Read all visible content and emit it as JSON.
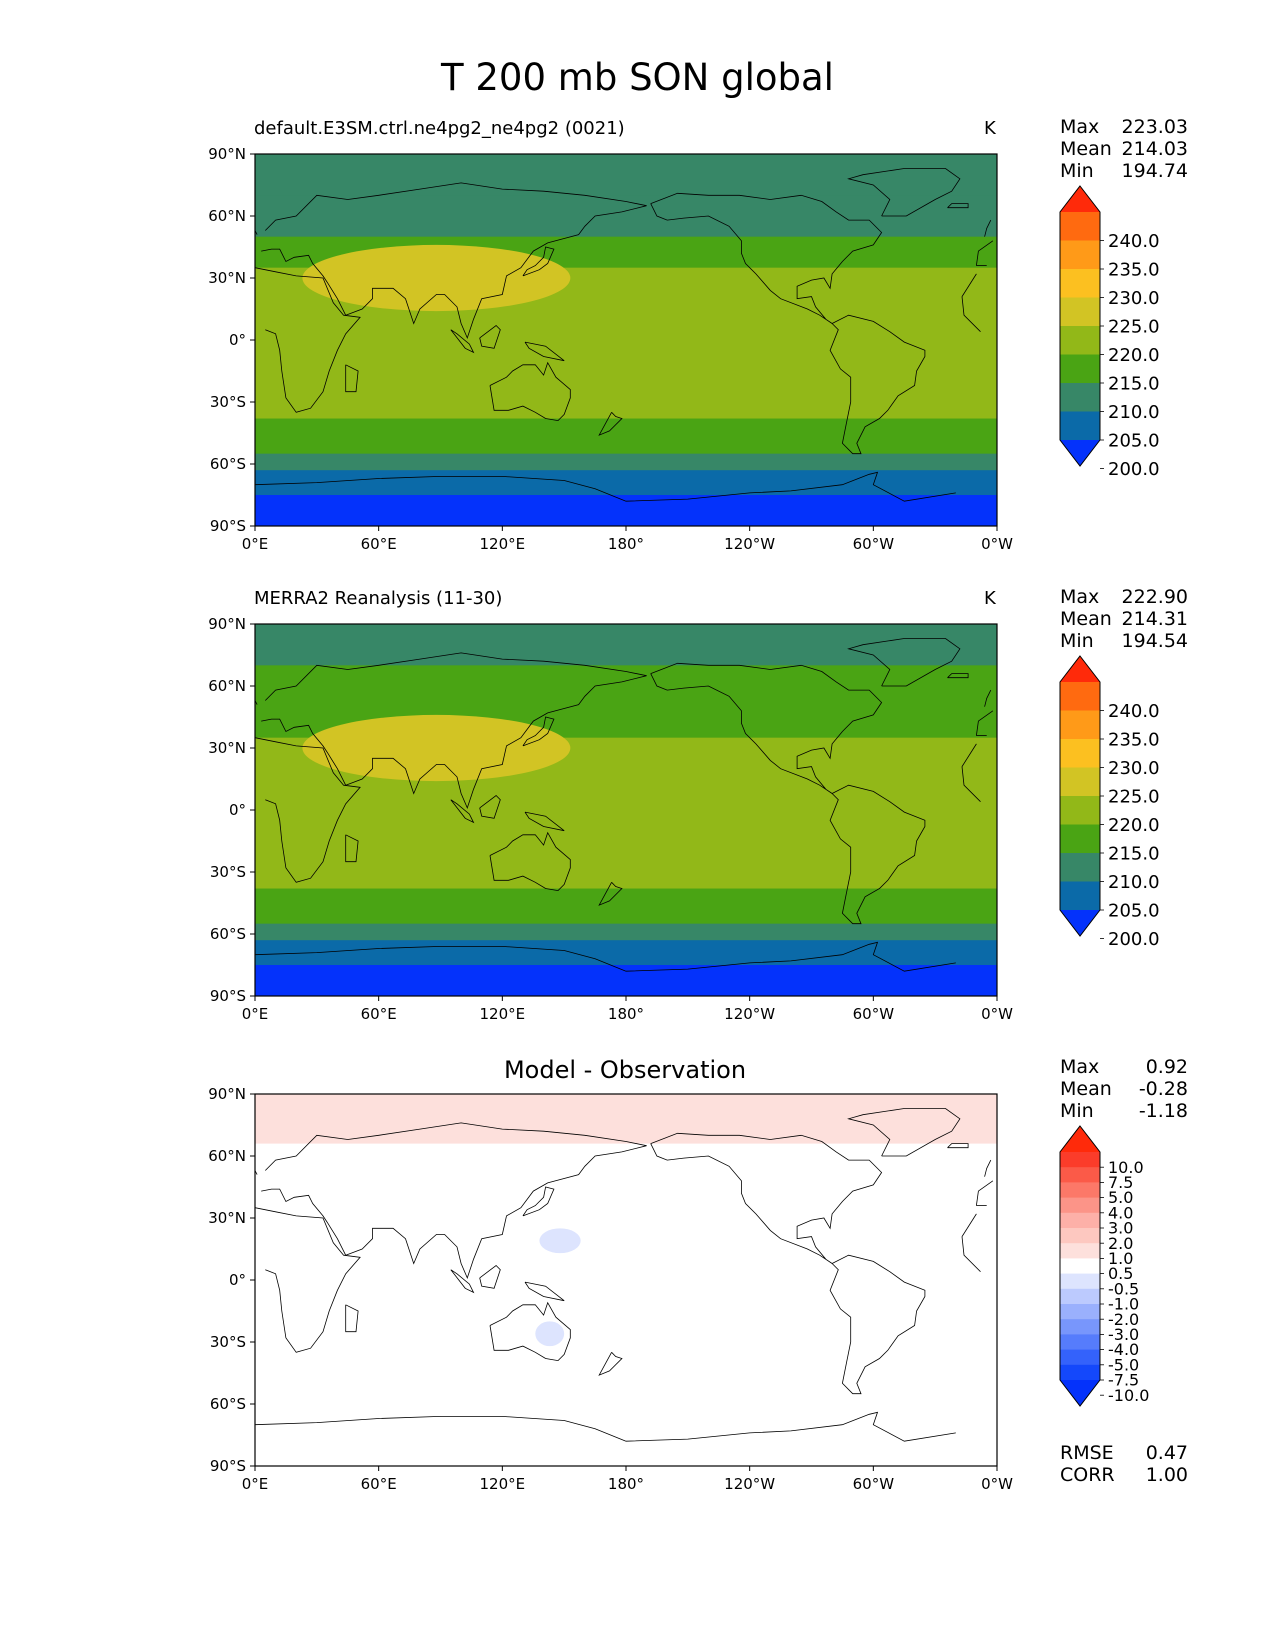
{
  "title": "T 200 mb SON global",
  "axes": {
    "lat_ticks": [
      "90°N",
      "60°N",
      "30°N",
      "0°",
      "30°S",
      "60°S",
      "90°S"
    ],
    "lon_ticks": [
      "0°E",
      "60°E",
      "120°E",
      "180°",
      "120°W",
      "60°W",
      "0°W"
    ]
  },
  "panels": [
    {
      "title": "default.E3SM.ctrl.ne4pg2_ne4pg2 (0021)",
      "units": "K",
      "stats": [
        {
          "label": "Max",
          "value": "223.03"
        },
        {
          "label": "Mean",
          "value": "214.03"
        },
        {
          "label": "Min",
          "value": "194.74"
        }
      ],
      "colorbar": {
        "labels": [
          "240.0",
          "235.0",
          "230.0",
          "225.0",
          "220.0",
          "215.0",
          "210.0",
          "205.0",
          "200.0"
        ],
        "colors": [
          "#ff2a0a",
          "#ff6a10",
          "#ff9a18",
          "#fcc020",
          "#d2c424",
          "#92b818",
          "#4aa414",
          "#378767",
          "#0b6aa8",
          "#0432fb"
        ]
      },
      "field": {
        "temperatures_K": [
          206,
          209,
          213,
          216,
          217,
          216,
          216,
          216,
          214,
          211,
          206,
          200,
          197
        ],
        "plateau_max_K": 222
      }
    },
    {
      "title": "MERRA2 Reanalysis (11-30)",
      "units": "K",
      "stats": [
        {
          "label": "Max",
          "value": "222.90"
        },
        {
          "label": "Mean",
          "value": "214.31"
        },
        {
          "label": "Min",
          "value": "194.54"
        }
      ],
      "colorbar": {
        "labels": [
          "240.0",
          "235.0",
          "230.0",
          "225.0",
          "220.0",
          "215.0",
          "210.0",
          "205.0",
          "200.0"
        ],
        "colors": [
          "#ff2a0a",
          "#ff6a10",
          "#ff9a18",
          "#fcc020",
          "#d2c424",
          "#92b818",
          "#4aa414",
          "#378767",
          "#0b6aa8",
          "#0432fb"
        ]
      },
      "field": {
        "temperatures_K": [
          207,
          210,
          214,
          216,
          217,
          216,
          216,
          216,
          214,
          211,
          206,
          200,
          197
        ],
        "plateau_max_K": 222
      }
    },
    {
      "title": "Model - Observation",
      "units": "",
      "stats": [
        {
          "label": "Max",
          "value": "0.92"
        },
        {
          "label": "Mean",
          "value": "-0.28"
        },
        {
          "label": "Min",
          "value": "-1.18"
        }
      ],
      "extra_stats": [
        {
          "label": "RMSE",
          "value": "0.47"
        },
        {
          "label": "CORR",
          "value": "1.00"
        }
      ],
      "colorbar": {
        "labels": [
          "10.0",
          "7.5",
          "5.0",
          "4.0",
          "3.0",
          "2.0",
          "1.0",
          "0.5",
          "-0.5",
          "-1.0",
          "-2.0",
          "-3.0",
          "-4.0",
          "-5.0",
          "-7.5",
          "-10.0"
        ],
        "colors": [
          "#ff2a0a",
          "#fb3c2a",
          "#fb5a48",
          "#fc7868",
          "#fc9488",
          "#fdb0a8",
          "#fdc8c0",
          "#fde0dc",
          "#ffffff",
          "#dde4fe",
          "#bccafe",
          "#9ab0fd",
          "#7896fc",
          "#567cfc",
          "#3462fb",
          "#1448fb",
          "#0432fb"
        ]
      },
      "field": {
        "difference_K": [
          0.6,
          -0.3,
          -0.6,
          -0.7,
          -0.8
        ]
      }
    }
  ]
}
